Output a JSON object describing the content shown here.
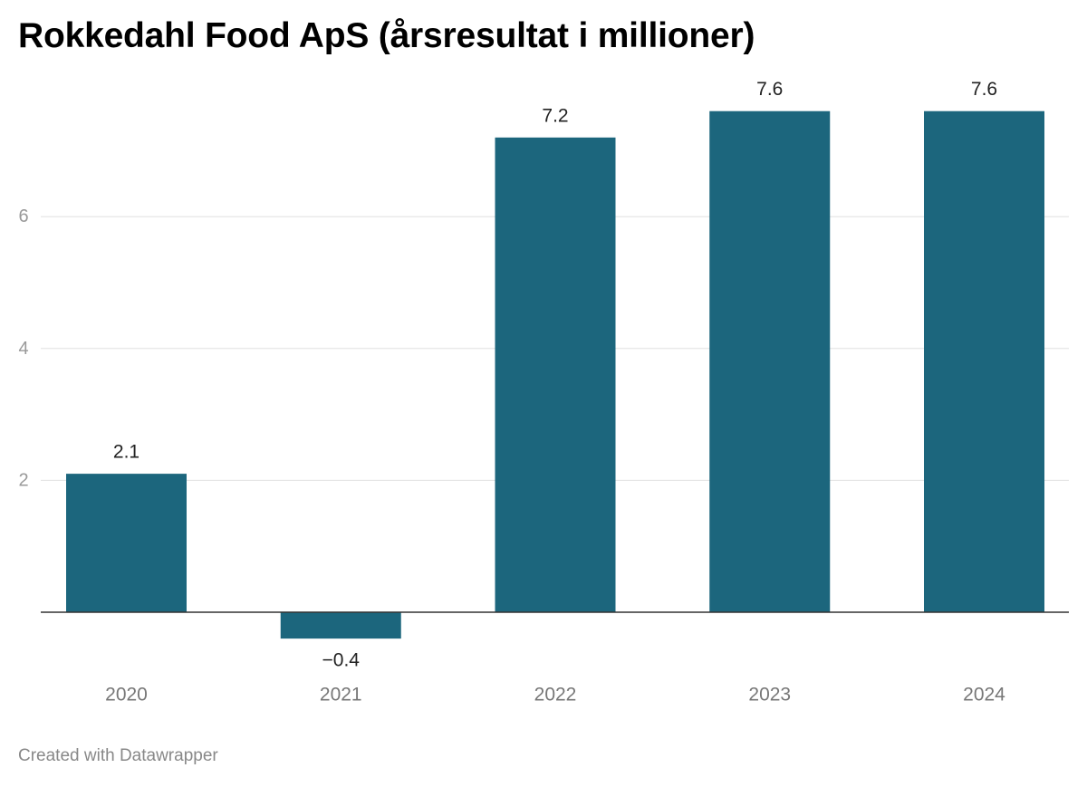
{
  "chart_data": {
    "type": "bar",
    "title": "Rokkedahl Food ApS (årsresultat i millioner)",
    "categories": [
      "2020",
      "2021",
      "2022",
      "2023",
      "2024"
    ],
    "values": [
      2.1,
      -0.4,
      7.2,
      7.6,
      7.6
    ],
    "value_labels": [
      "2.1",
      "−0.4",
      "7.2",
      "7.6",
      "7.6"
    ],
    "y_ticks": [
      2,
      4,
      6
    ],
    "ylim": [
      -0.4,
      7.6
    ],
    "grid": true,
    "bar_color": "#1c667d"
  },
  "footer": {
    "credit": "Created with Datawrapper"
  }
}
